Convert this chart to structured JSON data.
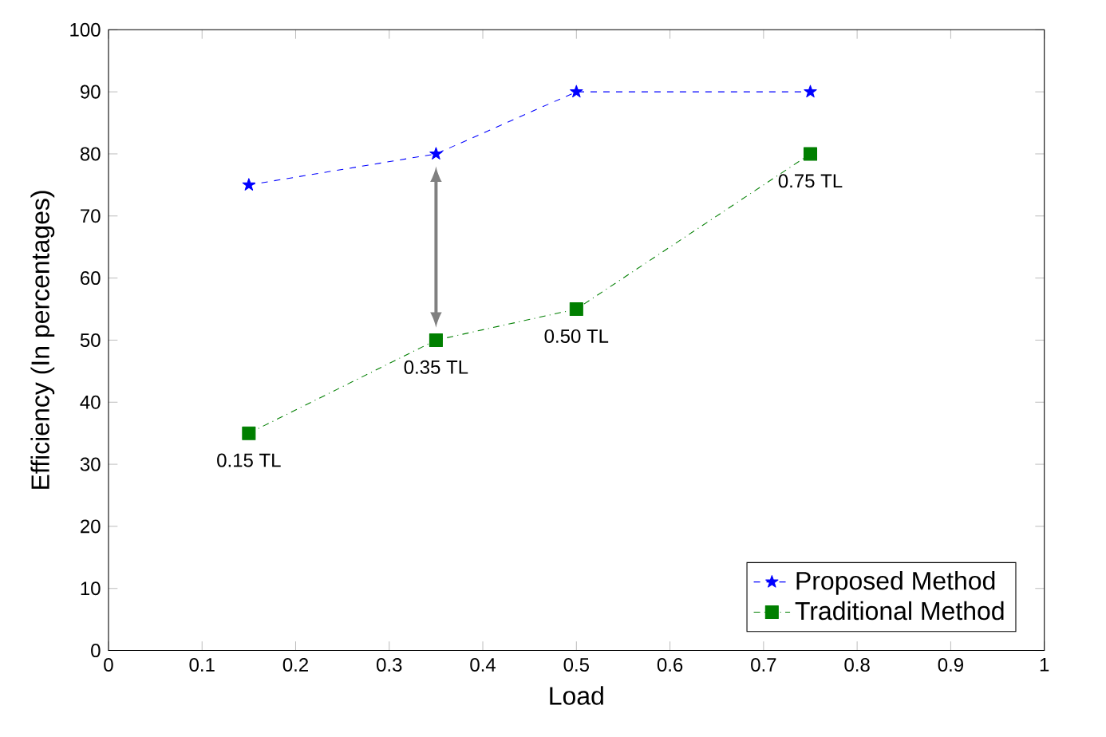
{
  "chart_data": {
    "type": "line",
    "xlabel": "Load",
    "ylabel": "Efficiency (In percentages)",
    "x": [
      0.15,
      0.35,
      0.5,
      0.75
    ],
    "series": [
      {
        "name": "Proposed Method",
        "color": "#0000ff",
        "values": [
          75,
          80,
          90,
          90
        ],
        "marker": "star",
        "line_style": "dashed"
      },
      {
        "name": "Traditional Method",
        "color": "#007f00",
        "values": [
          35,
          50,
          55,
          80
        ],
        "marker": "square",
        "line_style": "dashdot"
      }
    ],
    "xlim": [
      0,
      1
    ],
    "ylim": [
      0,
      100
    ],
    "xticks": [
      0,
      0.1,
      0.2,
      0.3,
      0.4,
      0.5,
      0.6,
      0.7,
      0.8,
      0.9,
      1
    ],
    "yticks": [
      0,
      10,
      20,
      30,
      40,
      50,
      60,
      70,
      80,
      90,
      100
    ],
    "grid": false,
    "legend": "bottom right",
    "annotations": [
      {
        "text": "0.15 TL",
        "x": 0.15,
        "y": 35
      },
      {
        "text": "0.35 TL",
        "x": 0.35,
        "y": 50
      },
      {
        "text": "0.50 TL",
        "x": 0.5,
        "y": 55
      },
      {
        "text": "0.75 TL",
        "x": 0.75,
        "y": 80
      }
    ]
  }
}
